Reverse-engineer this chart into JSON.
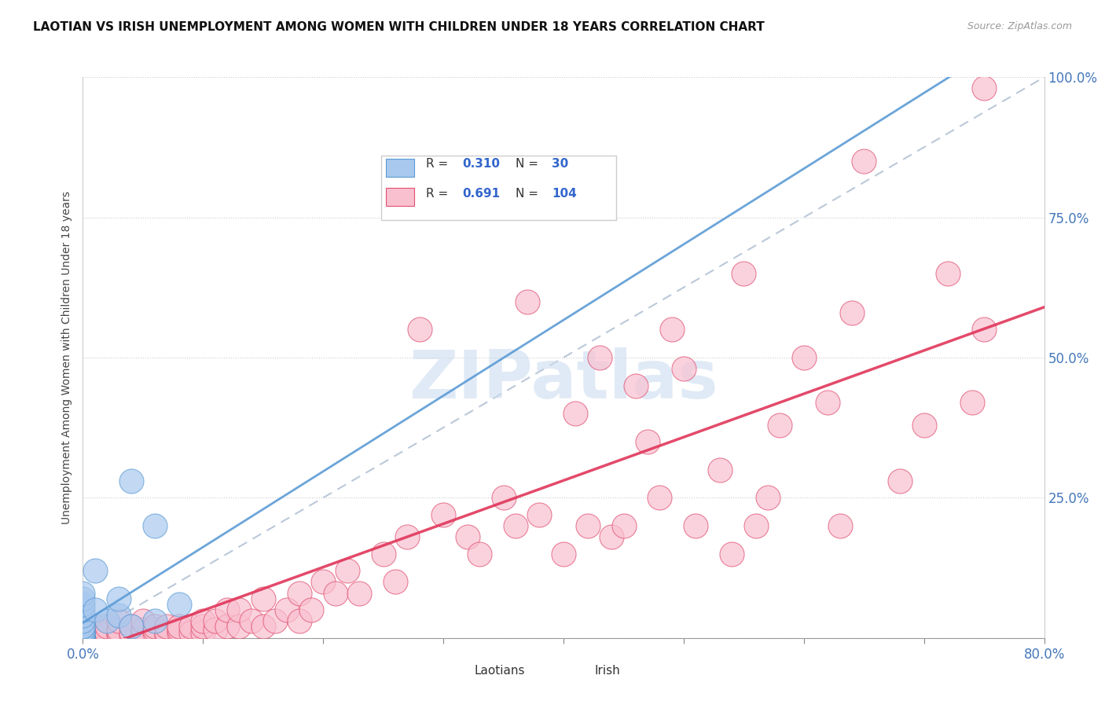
{
  "title": "LAOTIAN VS IRISH UNEMPLOYMENT AMONG WOMEN WITH CHILDREN UNDER 18 YEARS CORRELATION CHART",
  "source": "Source: ZipAtlas.com",
  "ylabel": "Unemployment Among Women with Children Under 18 years",
  "xlim": [
    0.0,
    0.8
  ],
  "ylim": [
    0.0,
    1.0
  ],
  "blue_color": "#a8c8ee",
  "blue_edge_color": "#5b9bd5",
  "pink_color": "#f9c0d0",
  "pink_edge_color": "#e05070",
  "pink_line_color": "#e0365a",
  "blue_line_color": "#5b9bd5",
  "dashed_line_color": "#aabbd0",
  "watermark_color": "#ccddf0",
  "watermark": "ZIPatlas",
  "background_color": "#ffffff",
  "legend_blue_r": "0.310",
  "legend_blue_n": "30",
  "legend_pink_r": "0.691",
  "legend_pink_n": "104",
  "laotian_x": [
    0.0,
    0.0,
    0.0,
    0.0,
    0.0,
    0.0,
    0.0,
    0.0,
    0.0,
    0.0,
    0.0,
    0.0,
    0.0,
    0.0,
    0.0,
    0.0,
    0.0,
    0.0,
    0.0,
    0.0,
    0.01,
    0.01,
    0.02,
    0.03,
    0.03,
    0.04,
    0.04,
    0.06,
    0.06,
    0.08
  ],
  "laotian_y": [
    0.0,
    0.0,
    0.0,
    0.0,
    0.0,
    0.0,
    0.005,
    0.005,
    0.01,
    0.01,
    0.01,
    0.015,
    0.02,
    0.02,
    0.03,
    0.04,
    0.05,
    0.06,
    0.07,
    0.08,
    0.05,
    0.12,
    0.03,
    0.04,
    0.07,
    0.02,
    0.28,
    0.03,
    0.2,
    0.06
  ],
  "irish_x": [
    0.0,
    0.0,
    0.0,
    0.0,
    0.0,
    0.0,
    0.0,
    0.0,
    0.0,
    0.0,
    0.01,
    0.01,
    0.01,
    0.01,
    0.01,
    0.01,
    0.01,
    0.02,
    0.02,
    0.02,
    0.02,
    0.03,
    0.03,
    0.03,
    0.03,
    0.04,
    0.04,
    0.04,
    0.05,
    0.05,
    0.05,
    0.05,
    0.06,
    0.06,
    0.06,
    0.07,
    0.07,
    0.07,
    0.08,
    0.08,
    0.08,
    0.09,
    0.09,
    0.1,
    0.1,
    0.1,
    0.11,
    0.11,
    0.12,
    0.12,
    0.13,
    0.13,
    0.14,
    0.15,
    0.15,
    0.16,
    0.17,
    0.18,
    0.18,
    0.19,
    0.2,
    0.21,
    0.22,
    0.23,
    0.25,
    0.26,
    0.27,
    0.28,
    0.3,
    0.32,
    0.33,
    0.35,
    0.36,
    0.37,
    0.38,
    0.4,
    0.41,
    0.42,
    0.43,
    0.44,
    0.45,
    0.46,
    0.47,
    0.48,
    0.49,
    0.5,
    0.51,
    0.53,
    0.54,
    0.55,
    0.56,
    0.57,
    0.58,
    0.6,
    0.62,
    0.63,
    0.64,
    0.65,
    0.68,
    0.7,
    0.72,
    0.74,
    0.75,
    0.75
  ],
  "irish_y": [
    0.0,
    0.0,
    0.0,
    0.0,
    0.0,
    0.0,
    0.005,
    0.005,
    0.01,
    0.01,
    0.0,
    0.0,
    0.005,
    0.01,
    0.01,
    0.015,
    0.02,
    0.0,
    0.005,
    0.01,
    0.02,
    0.005,
    0.01,
    0.015,
    0.03,
    0.005,
    0.01,
    0.02,
    0.0,
    0.01,
    0.015,
    0.03,
    0.01,
    0.015,
    0.02,
    0.005,
    0.01,
    0.02,
    0.01,
    0.015,
    0.02,
    0.01,
    0.02,
    0.01,
    0.02,
    0.03,
    0.015,
    0.03,
    0.02,
    0.05,
    0.02,
    0.05,
    0.03,
    0.02,
    0.07,
    0.03,
    0.05,
    0.03,
    0.08,
    0.05,
    0.1,
    0.08,
    0.12,
    0.08,
    0.15,
    0.1,
    0.18,
    0.55,
    0.22,
    0.18,
    0.15,
    0.25,
    0.2,
    0.6,
    0.22,
    0.15,
    0.4,
    0.2,
    0.5,
    0.18,
    0.2,
    0.45,
    0.35,
    0.25,
    0.55,
    0.48,
    0.2,
    0.3,
    0.15,
    0.65,
    0.2,
    0.25,
    0.38,
    0.5,
    0.42,
    0.2,
    0.58,
    0.85,
    0.28,
    0.38,
    0.65,
    0.42,
    0.98,
    0.55
  ]
}
